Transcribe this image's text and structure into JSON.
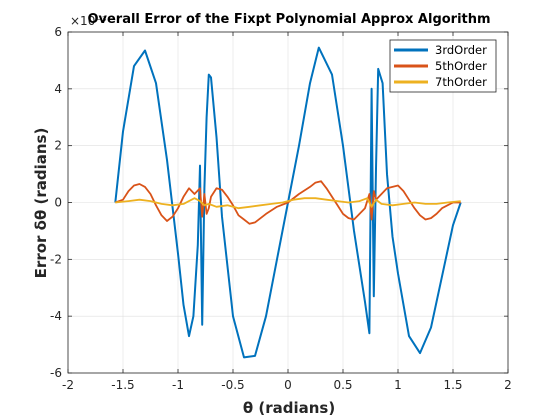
{
  "chart_data": {
    "type": "line",
    "title": "Overall Error of the Fixpt Polynomial Approx Algorithm",
    "xlabel": "θ (radians)",
    "ylabel": "Error   δθ (radians)",
    "y_exponent_label": "×10⁻³",
    "xlim": [
      -2,
      2
    ],
    "ylim": [
      -6,
      6
    ],
    "y_scale_note": "values in units of 1e-3",
    "xticks": [
      "-2",
      "-1.5",
      "-1",
      "-0.5",
      "0",
      "0.5",
      "1",
      "1.5",
      "2"
    ],
    "yticks": [
      "-6",
      "-4",
      "-2",
      "0",
      "2",
      "4",
      "6"
    ],
    "grid": true,
    "legend_position": "top-right",
    "series": [
      {
        "name": "3rdOrder",
        "color": "#0072BD",
        "x": [
          -1.57,
          -1.5,
          -1.4,
          -1.3,
          -1.2,
          -1.1,
          -1.0,
          -0.95,
          -0.9,
          -0.86,
          -0.82,
          -0.8,
          -0.78,
          -0.76,
          -0.74,
          -0.72,
          -0.7,
          -0.65,
          -0.6,
          -0.5,
          -0.4,
          -0.3,
          -0.2,
          -0.1,
          0,
          0.1,
          0.2,
          0.28,
          0.4,
          0.5,
          0.6,
          0.7,
          0.74,
          0.76,
          0.78,
          0.8,
          0.82,
          0.86,
          0.9,
          0.95,
          1.0,
          1.1,
          1.2,
          1.3,
          1.4,
          1.5,
          1.57
        ],
        "values": [
          0.0,
          2.5,
          4.8,
          5.35,
          4.2,
          1.5,
          -1.8,
          -3.6,
          -4.7,
          -4.0,
          -1.5,
          1.3,
          -4.3,
          0.5,
          3.0,
          4.5,
          4.4,
          2.3,
          -0.5,
          -4.0,
          -5.45,
          -5.4,
          -4.0,
          -2.0,
          0.0,
          2.0,
          4.2,
          5.45,
          4.5,
          2.0,
          -1.0,
          -3.5,
          -4.6,
          4.0,
          -3.3,
          1.2,
          4.7,
          4.2,
          1.0,
          -1.2,
          -2.5,
          -4.7,
          -5.3,
          -4.4,
          -2.6,
          -0.8,
          0.0
        ]
      },
      {
        "name": "5thOrder",
        "color": "#D95319",
        "x": [
          -1.57,
          -1.5,
          -1.45,
          -1.4,
          -1.35,
          -1.3,
          -1.25,
          -1.2,
          -1.15,
          -1.1,
          -1.05,
          -1.0,
          -0.95,
          -0.9,
          -0.85,
          -0.8,
          -0.78,
          -0.76,
          -0.74,
          -0.72,
          -0.7,
          -0.65,
          -0.6,
          -0.55,
          -0.5,
          -0.45,
          -0.4,
          -0.35,
          -0.3,
          -0.2,
          -0.1,
          0,
          0.1,
          0.2,
          0.25,
          0.3,
          0.35,
          0.4,
          0.45,
          0.5,
          0.55,
          0.6,
          0.65,
          0.7,
          0.74,
          0.76,
          0.78,
          0.8,
          0.85,
          0.9,
          0.95,
          1.0,
          1.05,
          1.1,
          1.15,
          1.2,
          1.25,
          1.3,
          1.35,
          1.4,
          1.45,
          1.5,
          1.57
        ],
        "values": [
          0.0,
          0.1,
          0.4,
          0.6,
          0.65,
          0.55,
          0.3,
          -0.1,
          -0.45,
          -0.65,
          -0.5,
          -0.2,
          0.2,
          0.5,
          0.3,
          0.5,
          -0.5,
          0.3,
          -0.4,
          -0.2,
          0.2,
          0.5,
          0.45,
          0.2,
          -0.1,
          -0.45,
          -0.6,
          -0.75,
          -0.7,
          -0.4,
          -0.15,
          0.0,
          0.3,
          0.55,
          0.7,
          0.75,
          0.5,
          0.2,
          -0.1,
          -0.4,
          -0.55,
          -0.6,
          -0.4,
          -0.2,
          0.3,
          -0.6,
          0.4,
          0.1,
          0.3,
          0.5,
          0.55,
          0.6,
          0.4,
          0.1,
          -0.2,
          -0.45,
          -0.6,
          -0.55,
          -0.4,
          -0.2,
          -0.1,
          0.0,
          0.0
        ]
      },
      {
        "name": "7thOrder",
        "color": "#EDB120",
        "x": [
          -1.57,
          -1.45,
          -1.35,
          -1.25,
          -1.15,
          -1.05,
          -0.95,
          -0.85,
          -0.8,
          -0.76,
          -0.72,
          -0.65,
          -0.55,
          -0.45,
          -0.35,
          -0.25,
          -0.15,
          -0.05,
          0.05,
          0.15,
          0.25,
          0.35,
          0.45,
          0.55,
          0.65,
          0.72,
          0.76,
          0.8,
          0.85,
          0.95,
          1.05,
          1.15,
          1.25,
          1.35,
          1.45,
          1.57
        ],
        "values": [
          0.0,
          0.05,
          0.1,
          0.05,
          -0.05,
          -0.1,
          -0.05,
          0.15,
          0.05,
          -0.1,
          -0.05,
          -0.15,
          -0.1,
          -0.2,
          -0.15,
          -0.1,
          -0.05,
          0.0,
          0.1,
          0.15,
          0.15,
          0.1,
          0.05,
          0.0,
          0.05,
          0.15,
          -0.15,
          0.1,
          -0.05,
          -0.1,
          -0.05,
          0.0,
          -0.05,
          -0.05,
          0.0,
          0.05
        ]
      }
    ]
  }
}
